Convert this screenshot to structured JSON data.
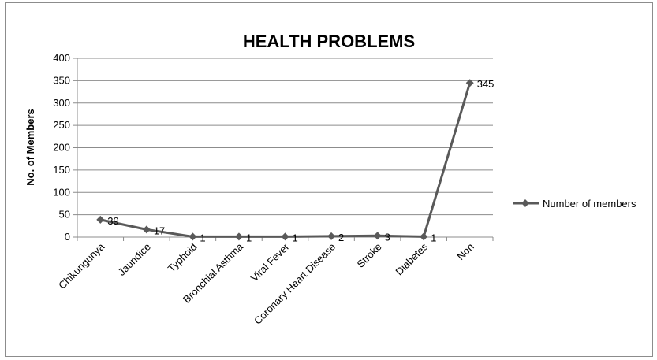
{
  "chart_data": {
    "type": "line",
    "title": "HEALTH PROBLEMS",
    "xlabel": "",
    "ylabel": "No. of Members",
    "categories": [
      "Chikungunya",
      "Jaundice",
      "Typhoid",
      "Bronchial Asthma",
      "Viral Fever",
      "Coronary Heart Disease",
      "Stroke",
      "Diabetes",
      "Non"
    ],
    "series": [
      {
        "name": "Number of members",
        "values": [
          39,
          17,
          1,
          1,
          1,
          2,
          3,
          1,
          345
        ],
        "color": "#595959",
        "marker": "diamond"
      }
    ],
    "data_labels": [
      "39",
      "17",
      "1",
      "1",
      "1",
      "2",
      "3",
      "1",
      "345"
    ],
    "ylim": [
      0,
      400
    ],
    "yticks": [
      "0",
      "50",
      "100",
      "150",
      "200",
      "250",
      "300",
      "350",
      "400"
    ],
    "grid": true,
    "legend_position": "right",
    "colors": {
      "gridline": "#8c8c8c",
      "axis": "#8c8c8c",
      "series": "#595959"
    }
  }
}
